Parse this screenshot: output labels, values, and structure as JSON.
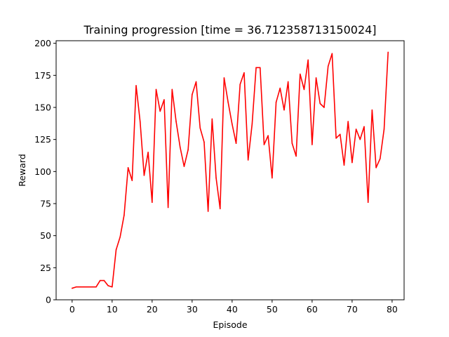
{
  "chart_data": {
    "type": "line",
    "title": "Training progression [time = 36.712358713150024]",
    "xlabel": "Episode",
    "ylabel": "Reward",
    "xlim": [
      -4,
      83
    ],
    "ylim": [
      0,
      202
    ],
    "xticks": [
      0,
      10,
      20,
      30,
      40,
      50,
      60,
      70,
      80
    ],
    "yticks": [
      0,
      25,
      50,
      75,
      100,
      125,
      150,
      175,
      200
    ],
    "grid": false,
    "series": [
      {
        "name": "reward",
        "color": "#ff0000",
        "x": [
          0,
          1,
          2,
          3,
          4,
          5,
          6,
          7,
          8,
          9,
          10,
          11,
          12,
          13,
          14,
          15,
          16,
          17,
          18,
          19,
          20,
          21,
          22,
          23,
          24,
          25,
          26,
          27,
          28,
          29,
          30,
          31,
          32,
          33,
          34,
          35,
          36,
          37,
          38,
          39,
          40,
          41,
          42,
          43,
          44,
          45,
          46,
          47,
          48,
          49,
          50,
          51,
          52,
          53,
          54,
          55,
          56,
          57,
          58,
          59,
          60,
          61,
          62,
          63,
          64,
          65,
          66,
          67,
          68,
          69,
          70,
          71,
          72,
          73,
          74,
          75,
          76,
          77,
          78,
          79
        ],
        "values": [
          9,
          10,
          10,
          10,
          10,
          10,
          10,
          15,
          15,
          11,
          10,
          39,
          49,
          66,
          103,
          93,
          167,
          139,
          97,
          115,
          76,
          164,
          147,
          156,
          72,
          164,
          139,
          119,
          104,
          117,
          160,
          170,
          134,
          123,
          69,
          141,
          95,
          71,
          173,
          154,
          137,
          122,
          168,
          177,
          109,
          137,
          181,
          181,
          121,
          128,
          95,
          154,
          165,
          148,
          170,
          122,
          112,
          176,
          164,
          187,
          121,
          173,
          153,
          150,
          182,
          192,
          126,
          129,
          105,
          139,
          107,
          133,
          125,
          135,
          76,
          148,
          103,
          110,
          133,
          193
        ]
      }
    ]
  }
}
